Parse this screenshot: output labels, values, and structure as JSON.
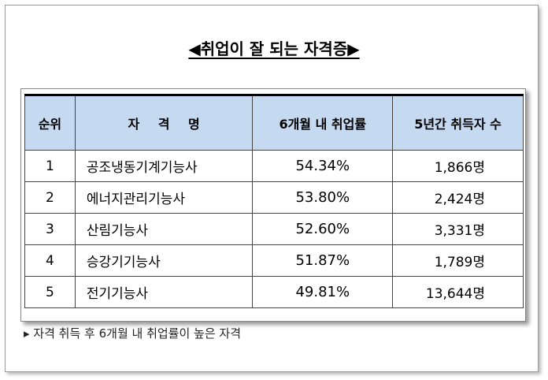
{
  "title": "◀취업이 잘 되는 자격증▶",
  "table": {
    "header": [
      "순위",
      "자 격 명",
      "6개월 내 취업률",
      "5년간 취득자 수"
    ],
    "rows": [
      [
        "1",
        "공조냉동기계기능사",
        "54.34%",
        "1,866명"
      ],
      [
        "2",
        "에너지관리기능사",
        "53.80%",
        "2,424명"
      ],
      [
        "3",
        "산림기능사",
        "52.60%",
        "3,331명"
      ],
      [
        "4",
        "승강기기능사",
        "51.87%",
        "1,789명"
      ],
      [
        "5",
        "전기기능사",
        "49.81%",
        "13,644명"
      ]
    ]
  },
  "note": "▸ 자격 취득 후 6개월 내 취업률이 높은 자격"
}
